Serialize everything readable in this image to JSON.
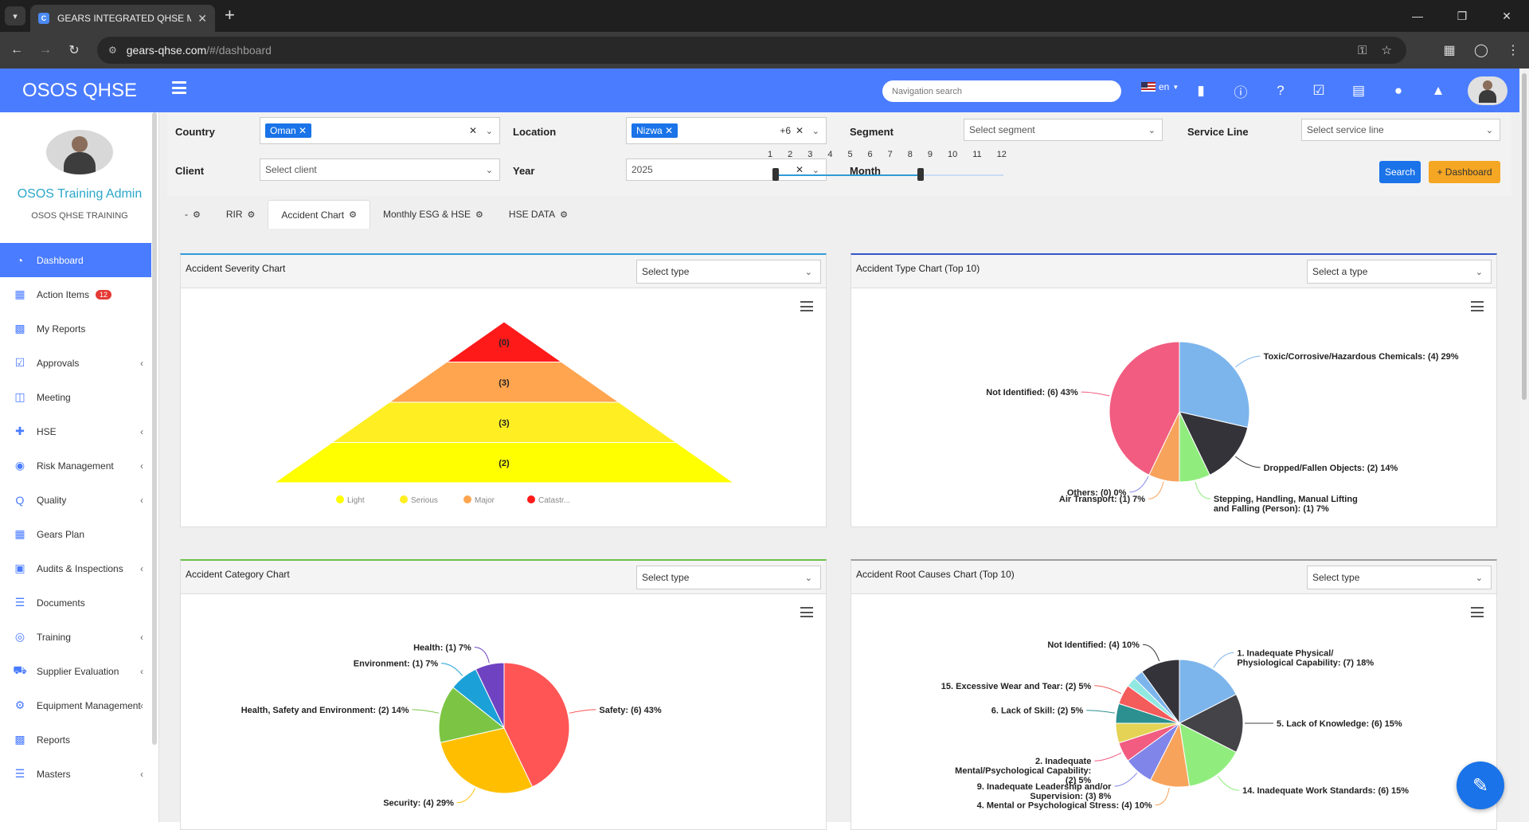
{
  "browser": {
    "tab_title": "GEARS INTEGRATED QHSE MAN",
    "url_host": "gears-qhse.com",
    "url_path": "/#/dashboard"
  },
  "header": {
    "brand": "OSOS QHSE",
    "nav_search_placeholder": "Navigation search",
    "language": "en"
  },
  "profile": {
    "name": "OSOS Training Admin",
    "org": "OSOS QHSE TRAINING"
  },
  "sidebar": {
    "items": [
      {
        "label": "Dashboard",
        "icon": "dashboard-icon"
      },
      {
        "label": "Action Items",
        "icon": "table-icon",
        "badge": "12"
      },
      {
        "label": "My Reports",
        "icon": "bar-chart-icon"
      },
      {
        "label": "Approvals",
        "icon": "check-square-icon"
      },
      {
        "label": "Meeting",
        "icon": "calendar-icon"
      },
      {
        "label": "HSE",
        "icon": "medkit-icon"
      },
      {
        "label": "Risk Management",
        "icon": "binoculars-icon"
      },
      {
        "label": "Quality",
        "icon": "quality-icon"
      },
      {
        "label": "Gears Plan",
        "icon": "calendar-grid-icon"
      },
      {
        "label": "Audits & Inspections",
        "icon": "inbox-icon"
      },
      {
        "label": "Documents",
        "icon": "database-icon"
      },
      {
        "label": "Training",
        "icon": "lifebuoy-icon"
      },
      {
        "label": "Supplier Evaluation",
        "icon": "truck-icon"
      },
      {
        "label": "Equipment Management",
        "icon": "cog-icon"
      },
      {
        "label": "Reports",
        "icon": "bar-chart-icon"
      },
      {
        "label": "Masters",
        "icon": "list-icon"
      }
    ]
  },
  "filters": {
    "country_label": "Country",
    "country_chip": "Oman",
    "location_label": "Location",
    "location_chip": "Nizwa",
    "location_more": "+6",
    "segment_label": "Segment",
    "segment_placeholder": "Select segment",
    "service_line_label": "Service Line",
    "service_line_placeholder": "Select service line",
    "client_label": "Client",
    "client_placeholder": "Select client",
    "year_label": "Year",
    "year_value": "2025",
    "month_label": "Month",
    "months": [
      "1",
      "2",
      "3",
      "4",
      "5",
      "6",
      "7",
      "8",
      "9",
      "10",
      "11",
      "12"
    ],
    "month_range": [
      1,
      8
    ],
    "search_label": "Search",
    "dashboard_label": "+ Dashboard"
  },
  "tabs": [
    {
      "label": "-"
    },
    {
      "label": "RIR"
    },
    {
      "label": "Accident Chart",
      "active": true
    },
    {
      "label": "Monthly ESG & HSE"
    },
    {
      "label": "HSE DATA"
    }
  ],
  "cards": {
    "severity": {
      "title": "Accident Severity Chart",
      "select": "Select type",
      "accent": "#2e9bd6"
    },
    "type": {
      "title": "Accident Type Chart (Top 10)",
      "select": "Select a type",
      "accent": "#3556c8"
    },
    "category": {
      "title": "Accident Category Chart",
      "select": "Select type",
      "accent": "#6cc04a"
    },
    "root": {
      "title": "Accident Root Causes Chart (Top 10)",
      "select": "Select type",
      "accent": "#9e9e9e"
    }
  },
  "chart_data": [
    {
      "type": "pyramid",
      "title": "Accident Severity Chart",
      "categories": [
        "Catastrophic",
        "Major",
        "Serious",
        "Light"
      ],
      "values": [
        0,
        3,
        3,
        2
      ],
      "data_labels": [
        "(0)",
        "(3)",
        "(3)",
        "(2)"
      ],
      "colors": [
        "#ff1a1a",
        "#ffa54f",
        "#ffee22",
        "#ffff00"
      ],
      "legend": [
        "Light",
        "Serious",
        "Major",
        "Catastr..."
      ],
      "legend_colors": [
        "#ffff00",
        "#ffee22",
        "#ffa54f",
        "#ff1a1a"
      ],
      "legend_position": "bottom"
    },
    {
      "type": "pie",
      "title": "Accident Type Chart (Top 10)",
      "series": [
        {
          "name": "Toxic/Corrosive/Hazardous Chemicals: (4) 29%",
          "value": 4,
          "percent": 29,
          "color": "#7cb5ec"
        },
        {
          "name": "Dropped/Fallen Objects: (2) 14%",
          "value": 2,
          "percent": 14,
          "color": "#333339"
        },
        {
          "name": "Stepping, Handling, Manual Lifting|and Falling (Person): (1) 7%",
          "value": 1,
          "percent": 7,
          "color": "#90ed7d"
        },
        {
          "name": "Air Transport: (1) 7%",
          "value": 1,
          "percent": 7,
          "color": "#f7a35c"
        },
        {
          "name": "Others: (0) 0%",
          "value": 0,
          "percent": 0,
          "color": "#8085e9"
        },
        {
          "name": "Not Identified: (6) 43%",
          "value": 6,
          "percent": 43,
          "color": "#f15c80"
        }
      ]
    },
    {
      "type": "pie",
      "title": "Accident Category Chart",
      "series": [
        {
          "name": "Safety: (6) 43%",
          "value": 6,
          "percent": 43,
          "color": "#ff5555"
        },
        {
          "name": "Security: (4) 29%",
          "value": 4,
          "percent": 29,
          "color": "#ffbf00"
        },
        {
          "name": "Health, Safety and Environment: (2) 14%",
          "value": 2,
          "percent": 14,
          "color": "#7cc544"
        },
        {
          "name": "Environment: (1) 7%",
          "value": 1,
          "percent": 7,
          "color": "#1ba1d8"
        },
        {
          "name": "Health: (1) 7%",
          "value": 1,
          "percent": 7,
          "color": "#6f42c1"
        }
      ]
    },
    {
      "type": "pie",
      "title": "Accident Root Causes Chart (Top 10)",
      "series": [
        {
          "name": "1. Inadequate Physical/|Physiological Capability: (7) 18%",
          "value": 7,
          "percent": 18,
          "color": "#7cb5ec"
        },
        {
          "name": "5. Lack of Knowledge: (6) 15%",
          "value": 6,
          "percent": 15,
          "color": "#434348"
        },
        {
          "name": "14. Inadequate Work Standards: (6) 15%",
          "value": 6,
          "percent": 15,
          "color": "#90ed7d"
        },
        {
          "name": "4. Mental or Psychological Stress: (4) 10%",
          "value": 4,
          "percent": 10,
          "color": "#f7a35c"
        },
        {
          "name": "9. Inadequate Leadership and/or|Supervision: (3) 8%",
          "value": 3,
          "percent": 8,
          "color": "#8085e9"
        },
        {
          "name": "2. Inadequate|Mental/Psychological Capability:|(2) 5%",
          "value": 2,
          "percent": 5,
          "color": "#f15c80"
        },
        {
          "name": "",
          "value": 2,
          "percent": 5,
          "color": "#e4d354"
        },
        {
          "name": "6. Lack of Skill: (2) 5%",
          "value": 2,
          "percent": 5,
          "color": "#2b908f"
        },
        {
          "name": "15. Excessive Wear and Tear: (2) 5%",
          "value": 2,
          "percent": 5,
          "color": "#f45b5b"
        },
        {
          "name": "",
          "value": 1,
          "percent": 3,
          "color": "#91e8e1"
        },
        {
          "name": "",
          "value": 1,
          "percent": 3,
          "color": "#7cb5ec"
        },
        {
          "name": "Not Identified: (4) 10%",
          "value": 4,
          "percent": 10,
          "color": "#333339"
        }
      ]
    }
  ]
}
